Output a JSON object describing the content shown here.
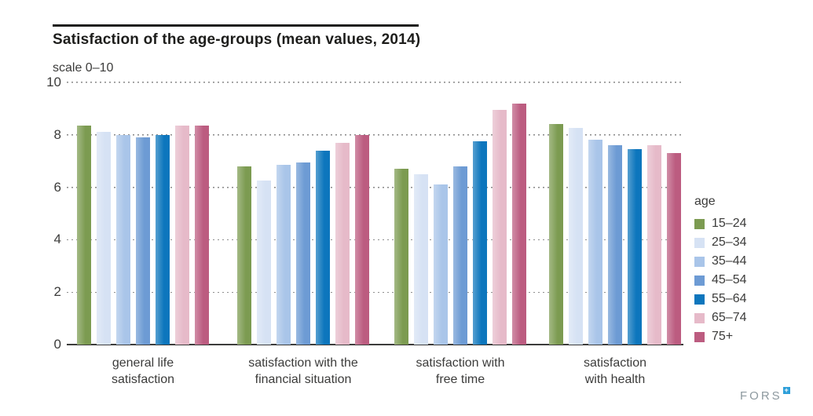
{
  "title": "Satisfaction of the age-groups (mean values, 2014)",
  "subtitle": "scale 0–10",
  "logo": {
    "text": "FORS"
  },
  "chart_data": {
    "type": "bar",
    "title": "Satisfaction of the age-groups (mean values, 2014)",
    "subtitle": "scale 0–10",
    "legend_title": "age",
    "legend_position": "right",
    "grid": "horizontal-dotted",
    "ylim": [
      0,
      10
    ],
    "yticks": [
      0,
      2,
      4,
      6,
      8,
      10
    ],
    "categories": [
      "general life satisfaction",
      "satisfaction with the financial situation",
      "satisfaction with free time",
      "satisfaction with health"
    ],
    "category_lines": [
      [
        "general life",
        "satisfaction"
      ],
      [
        "satisfaction with the",
        "financial situation"
      ],
      [
        "satisfaction with",
        "free time"
      ],
      [
        "satisfaction",
        "with health"
      ]
    ],
    "series": [
      {
        "name": "15–24",
        "color": "#7c9b51",
        "values": [
          8.35,
          6.8,
          6.7,
          8.4
        ]
      },
      {
        "name": "25–34",
        "color": "#d6e2f4",
        "values": [
          8.1,
          6.25,
          6.5,
          8.25
        ]
      },
      {
        "name": "35–44",
        "color": "#a9c5e9",
        "values": [
          8.0,
          6.85,
          6.1,
          7.8
        ]
      },
      {
        "name": "45–54",
        "color": "#6d9bd4",
        "values": [
          7.9,
          6.95,
          6.8,
          7.6
        ]
      },
      {
        "name": "55–64",
        "color": "#0d76bd",
        "values": [
          8.0,
          7.4,
          7.75,
          7.45
        ]
      },
      {
        "name": "65–74",
        "color": "#e6bac9",
        "values": [
          8.35,
          7.7,
          8.95,
          7.6
        ]
      },
      {
        "name": "75+",
        "color": "#bc5c80",
        "values": [
          8.35,
          8.0,
          9.2,
          7.3
        ]
      }
    ]
  }
}
